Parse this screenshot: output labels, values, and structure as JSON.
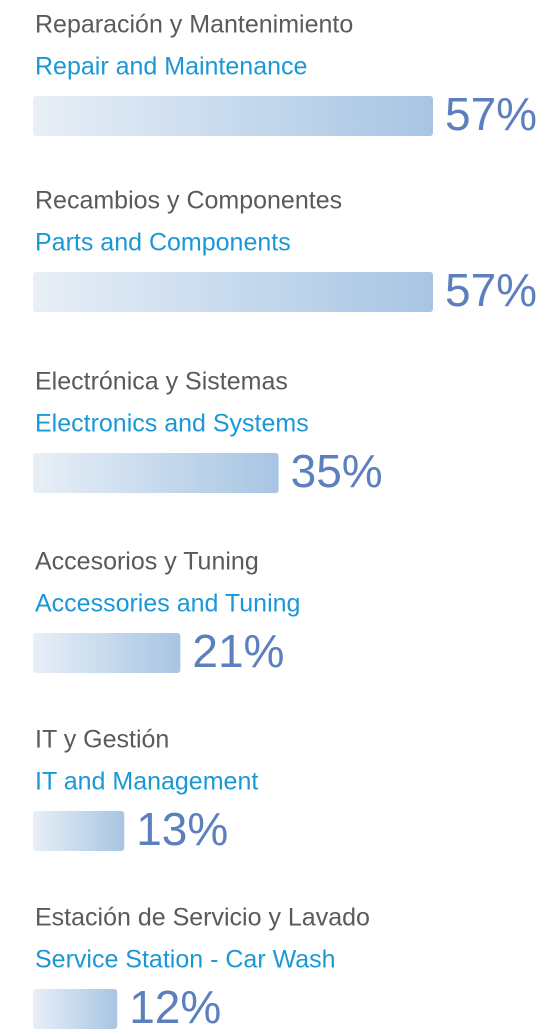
{
  "chart_data": {
    "type": "bar",
    "orientation": "horizontal",
    "color": "#a7c5e3",
    "labels_es": [
      "Reparación y Mantenimiento",
      "Recambios y Componentes",
      "Electrónica y Sistemas",
      "Accesorios y Tuning",
      "IT y Gestión",
      "Estación de Servicio y Lavado"
    ],
    "categories": [
      "Repair and Maintenance",
      "Parts and Components",
      "Electronics and Systems",
      "Accessories and Tuning",
      "IT and Management",
      "Service Station - Car Wash"
    ],
    "values": [
      57,
      57,
      35,
      21,
      13,
      12
    ],
    "value_labels": [
      "57%",
      "57%",
      "35%",
      "21%",
      "13%",
      "12%"
    ]
  }
}
